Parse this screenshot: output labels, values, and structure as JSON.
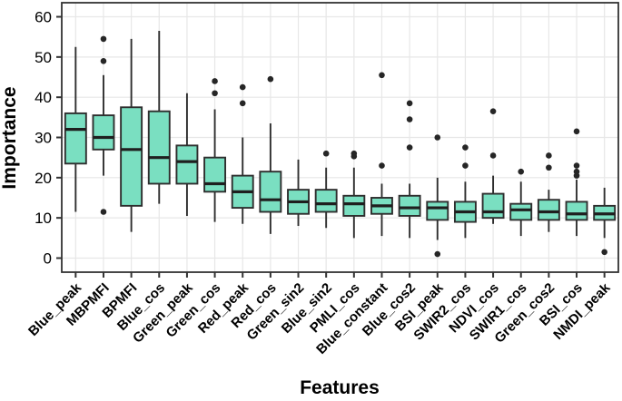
{
  "chart_data": {
    "type": "boxplot",
    "title": "",
    "xlabel": "Features",
    "ylabel": "Importance",
    "ylim": [
      0,
      60
    ],
    "yticks": [
      0,
      10,
      20,
      30,
      40,
      50,
      60
    ],
    "grid": "light-gray horizontal lines at each y tick and vertical line at each category center",
    "legend": "none",
    "categories": [
      "Blue_peak",
      "MBPMFI",
      "BPMFI",
      "Blue_cos",
      "Green_peak",
      "Green_cos",
      "Red_peak",
      "Red_cos",
      "Green_sin2",
      "Blue_sin2",
      "PMLI_cos",
      "Blue_constant",
      "Blue_cos2",
      "BSI_peak",
      "SWIR2_cos",
      "NDVI_cos",
      "SWIR1_cos",
      "Green_cos2",
      "BSI_cos",
      "NMDI_peak"
    ],
    "series": [
      {
        "feature": "Blue_peak",
        "whisker_low": 11.5,
        "q1": 23.5,
        "median": 32,
        "q3": 36,
        "whisker_high": 52.5,
        "outliers": []
      },
      {
        "feature": "MBPMFI",
        "whisker_low": 20.5,
        "q1": 27,
        "median": 30,
        "q3": 35.5,
        "whisker_high": 45.5,
        "outliers": [
          54.5,
          49,
          11.5
        ]
      },
      {
        "feature": "BPMFI",
        "whisker_low": 6.5,
        "q1": 13,
        "median": 27,
        "q3": 37.5,
        "whisker_high": 54.5,
        "outliers": []
      },
      {
        "feature": "Blue_cos",
        "whisker_low": 13.5,
        "q1": 18.5,
        "median": 25,
        "q3": 36.5,
        "whisker_high": 56.5,
        "outliers": []
      },
      {
        "feature": "Green_peak",
        "whisker_low": 10.5,
        "q1": 18.5,
        "median": 24,
        "q3": 28,
        "whisker_high": 41,
        "outliers": []
      },
      {
        "feature": "Green_cos",
        "whisker_low": 9,
        "q1": 16.5,
        "median": 18.5,
        "q3": 25,
        "whisker_high": 37,
        "outliers": [
          44,
          41
        ]
      },
      {
        "feature": "Red_peak",
        "whisker_low": 8.5,
        "q1": 12.5,
        "median": 16.5,
        "q3": 20.5,
        "whisker_high": 30,
        "outliers": [
          42.5,
          38.5
        ]
      },
      {
        "feature": "Red_cos",
        "whisker_low": 6,
        "q1": 11.5,
        "median": 14.5,
        "q3": 21.5,
        "whisker_high": 33.5,
        "outliers": [
          44.5
        ]
      },
      {
        "feature": "Green_sin2",
        "whisker_low": 8,
        "q1": 11,
        "median": 14,
        "q3": 17,
        "whisker_high": 24.5,
        "outliers": []
      },
      {
        "feature": "Blue_sin2",
        "whisker_low": 7.5,
        "q1": 11.5,
        "median": 13.5,
        "q3": 17,
        "whisker_high": 22.5,
        "outliers": [
          26
        ]
      },
      {
        "feature": "PMLI_cos",
        "whisker_low": 5,
        "q1": 10.5,
        "median": 13.5,
        "q3": 15.5,
        "whisker_high": 22.5,
        "outliers": [
          26,
          25.3
        ]
      },
      {
        "feature": "Blue_constant",
        "whisker_low": 5.5,
        "q1": 11,
        "median": 13,
        "q3": 15,
        "whisker_high": 18.5,
        "outliers": [
          45.5,
          23
        ]
      },
      {
        "feature": "Blue_cos2",
        "whisker_low": 5,
        "q1": 10.5,
        "median": 12.5,
        "q3": 15.5,
        "whisker_high": 18.5,
        "outliers": [
          38.5,
          34.5,
          27.5
        ]
      },
      {
        "feature": "BSI_peak",
        "whisker_low": 4.5,
        "q1": 9.5,
        "median": 12.5,
        "q3": 14,
        "whisker_high": 20,
        "outliers": [
          30,
          1
        ]
      },
      {
        "feature": "SWIR2_cos",
        "whisker_low": 5,
        "q1": 9,
        "median": 11.5,
        "q3": 14,
        "whisker_high": 19,
        "outliers": [
          27.5,
          23
        ]
      },
      {
        "feature": "NDVI_cos",
        "whisker_low": 8.5,
        "q1": 10,
        "median": 11.5,
        "q3": 16,
        "whisker_high": 20.5,
        "outliers": [
          36.5,
          25.5
        ]
      },
      {
        "feature": "SWIR1_cos",
        "whisker_low": 5.5,
        "q1": 9.5,
        "median": 12,
        "q3": 13.5,
        "whisker_high": 19,
        "outliers": [
          21.5
        ]
      },
      {
        "feature": "Green_cos2",
        "whisker_low": 6.5,
        "q1": 9.5,
        "median": 11.5,
        "q3": 14.5,
        "whisker_high": 17,
        "outliers": [
          25.5,
          22.5
        ]
      },
      {
        "feature": "BSI_cos",
        "whisker_low": 5.5,
        "q1": 9.5,
        "median": 11,
        "q3": 14,
        "whisker_high": 19.5,
        "outliers": [
          31.5,
          23,
          21.5,
          20.5
        ]
      },
      {
        "feature": "NMDI_peak",
        "whisker_low": 5,
        "q1": 9.5,
        "median": 11,
        "q3": 13,
        "whisker_high": 17.5,
        "outliers": [
          1.5
        ]
      }
    ],
    "style": {
      "box_fill": "#7ADFC1",
      "box_stroke": "#2E2E2E",
      "median_color": "#1F1F1F",
      "outlier_color": "#262626",
      "grid_color": "#E7E7E7",
      "panel_border": "#333333",
      "tick_color": "#333333",
      "background": "#FFFFFF"
    }
  }
}
